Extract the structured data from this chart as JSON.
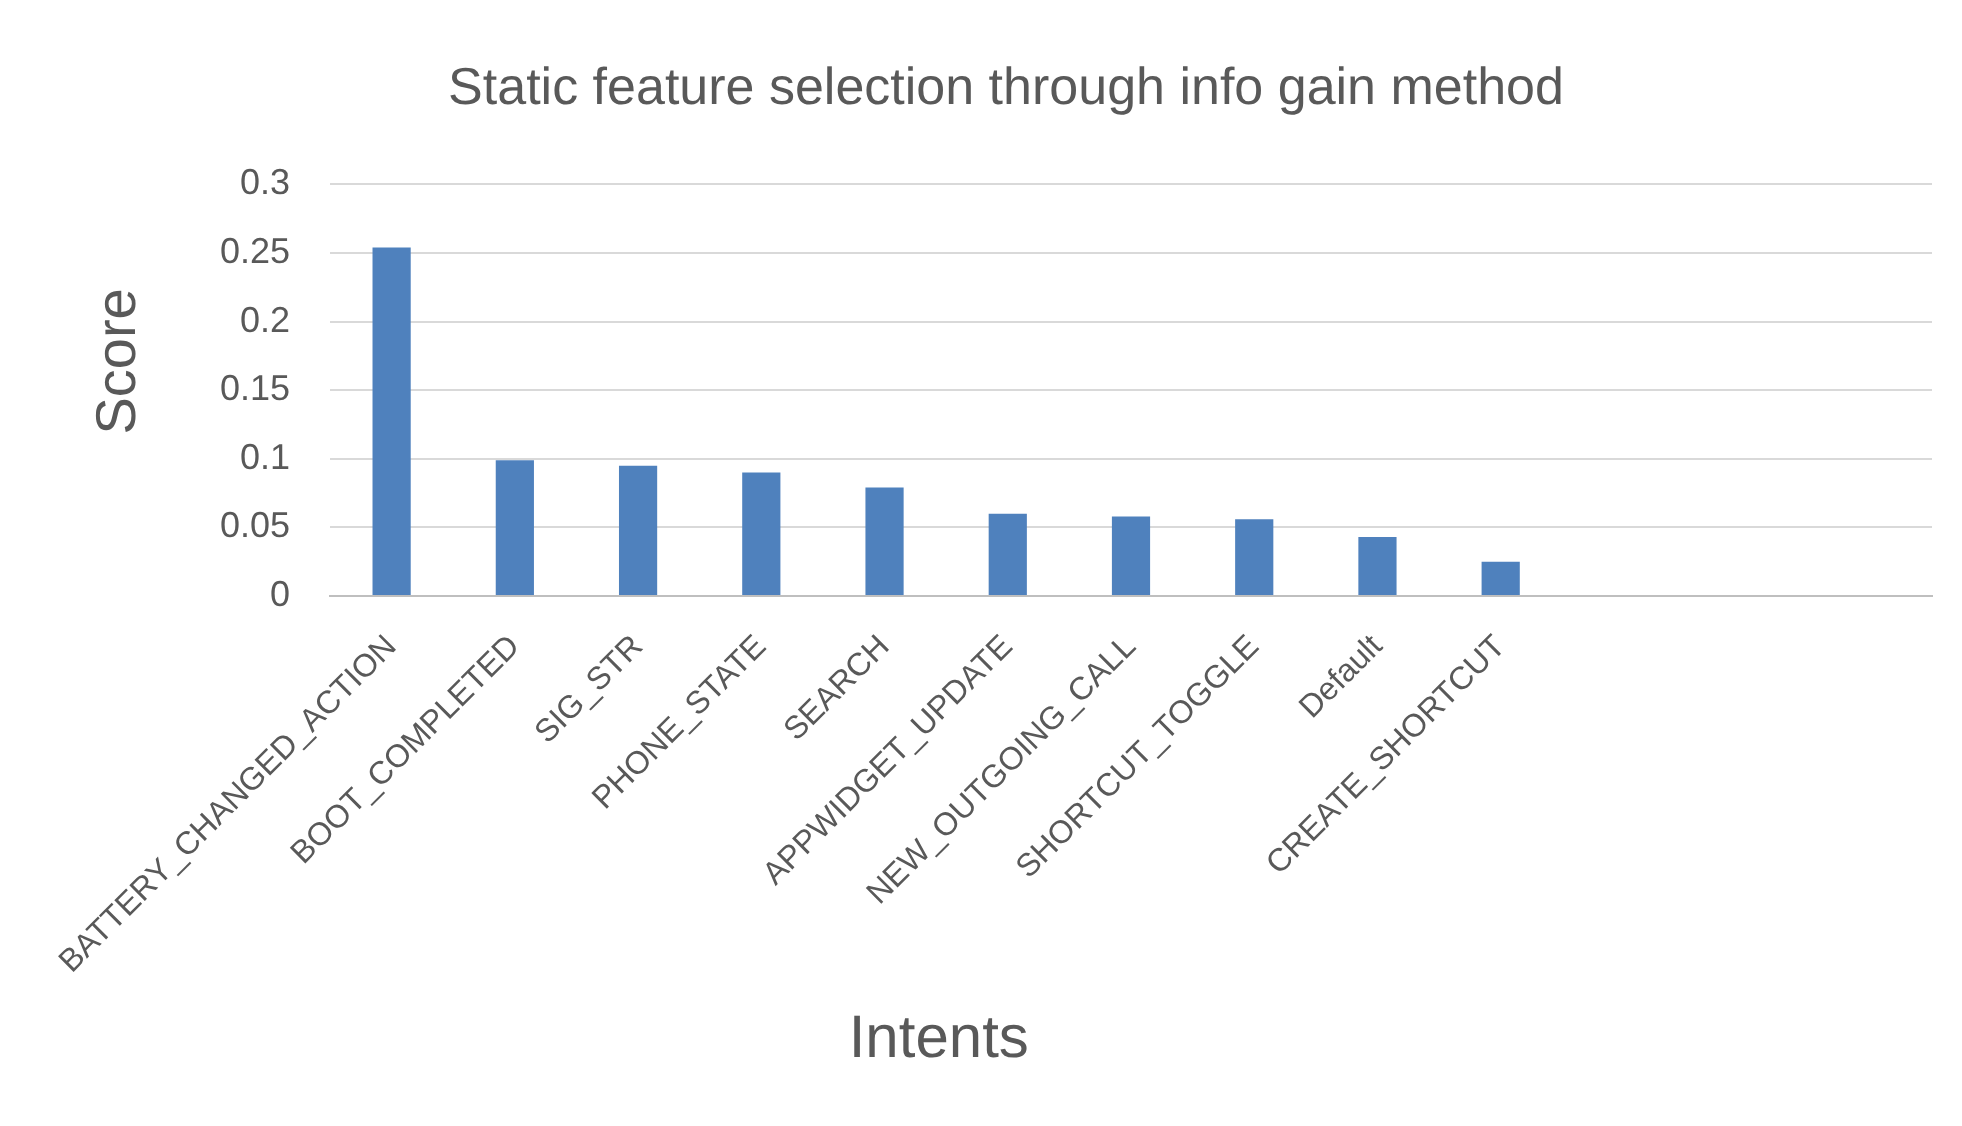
{
  "chart_data": {
    "type": "bar",
    "title": "Static feature selection through info gain method",
    "xlabel": "Intents",
    "ylabel": "Score",
    "categories": [
      "BATTERY_CHANGED_ACTION",
      "BOOT_COMPLETED",
      "SIG_STR",
      "PHONE_STATE",
      "SEARCH",
      "APPWIDGET_UPDATE",
      "NEW_OUTGOING_CALL",
      "SHORTCUT_TOGGLE",
      "Default",
      "CREATE_SHORTCUT",
      null,
      null,
      null
    ],
    "values": [
      0.254,
      0.099,
      0.095,
      0.09,
      0.079,
      0.06,
      0.058,
      0.056,
      0.043,
      0.025,
      null,
      null,
      null
    ],
    "color": "#4f81bd",
    "ylim": [
      0,
      0.3
    ],
    "yticks": [
      0,
      0.05,
      0.1,
      0.15,
      0.2,
      0.25,
      0.3
    ],
    "grid": "y"
  }
}
